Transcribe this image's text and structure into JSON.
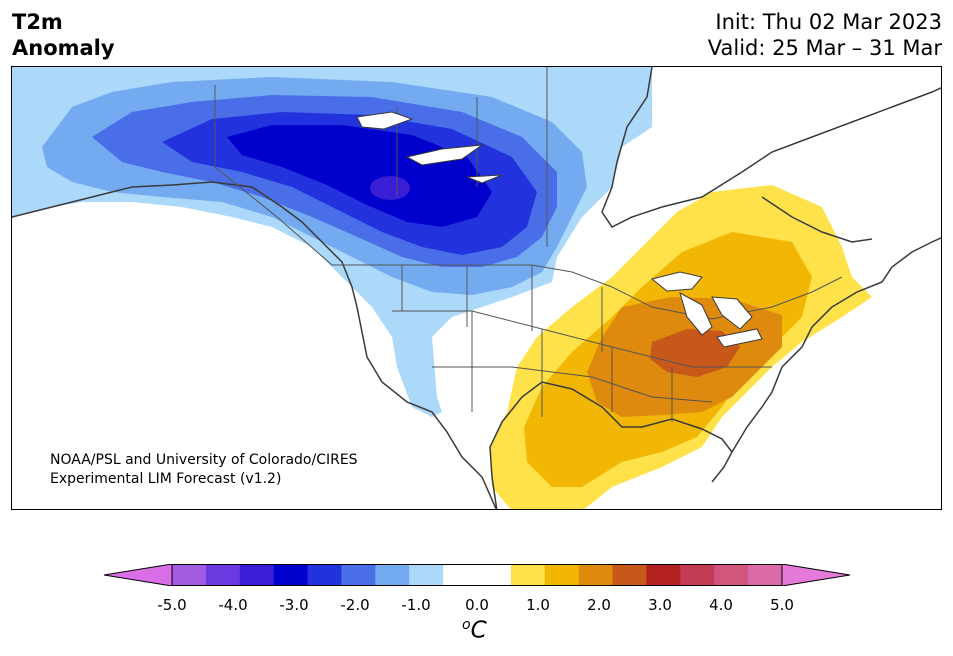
{
  "title": {
    "line1": "T2m",
    "line2": "Anomaly",
    "init": "Init: Thu 02 Mar 2023",
    "valid": "Valid: 25 Mar – 31 Mar"
  },
  "map": {
    "region": "North America",
    "credit_line1": "NOAA/PSL and University of Colorado/CIRES",
    "credit_line2": "Experimental LIM Forecast (v1.2)"
  },
  "colorbar": {
    "unit_super": "o",
    "unit": "C",
    "tick_labels": [
      "-5.0",
      "-4.0",
      "-3.0",
      "-2.0",
      "-1.0",
      "0.0",
      "1.0",
      "2.0",
      "3.0",
      "4.0",
      "5.0"
    ],
    "min_extend_color": "#d96ee6",
    "max_extend_color": "#e67ad9",
    "colors": [
      "#a25ae0",
      "#6a3ae0",
      "#3a1ed6",
      "#0000cc",
      "#2233dd",
      "#4a6ee8",
      "#74aaf0",
      "#acd8fa",
      "#ffffff",
      "#ffffff",
      "#ffe24a",
      "#f2b705",
      "#de8a0f",
      "#c8581a",
      "#b22020",
      "#c43c54",
      "#d2567c",
      "#dd6aa8"
    ]
  },
  "palette": {
    "dark_blue": "#0000cc",
    "blue": "#2233dd",
    "mid_blue": "#4a6ee8",
    "light_blue": "#74aaf0",
    "pale_blue": "#acd8fa",
    "yellow": "#ffe24a",
    "gold": "#f2b705",
    "orange": "#de8a0f",
    "dark_orange": "#c8581a"
  }
}
